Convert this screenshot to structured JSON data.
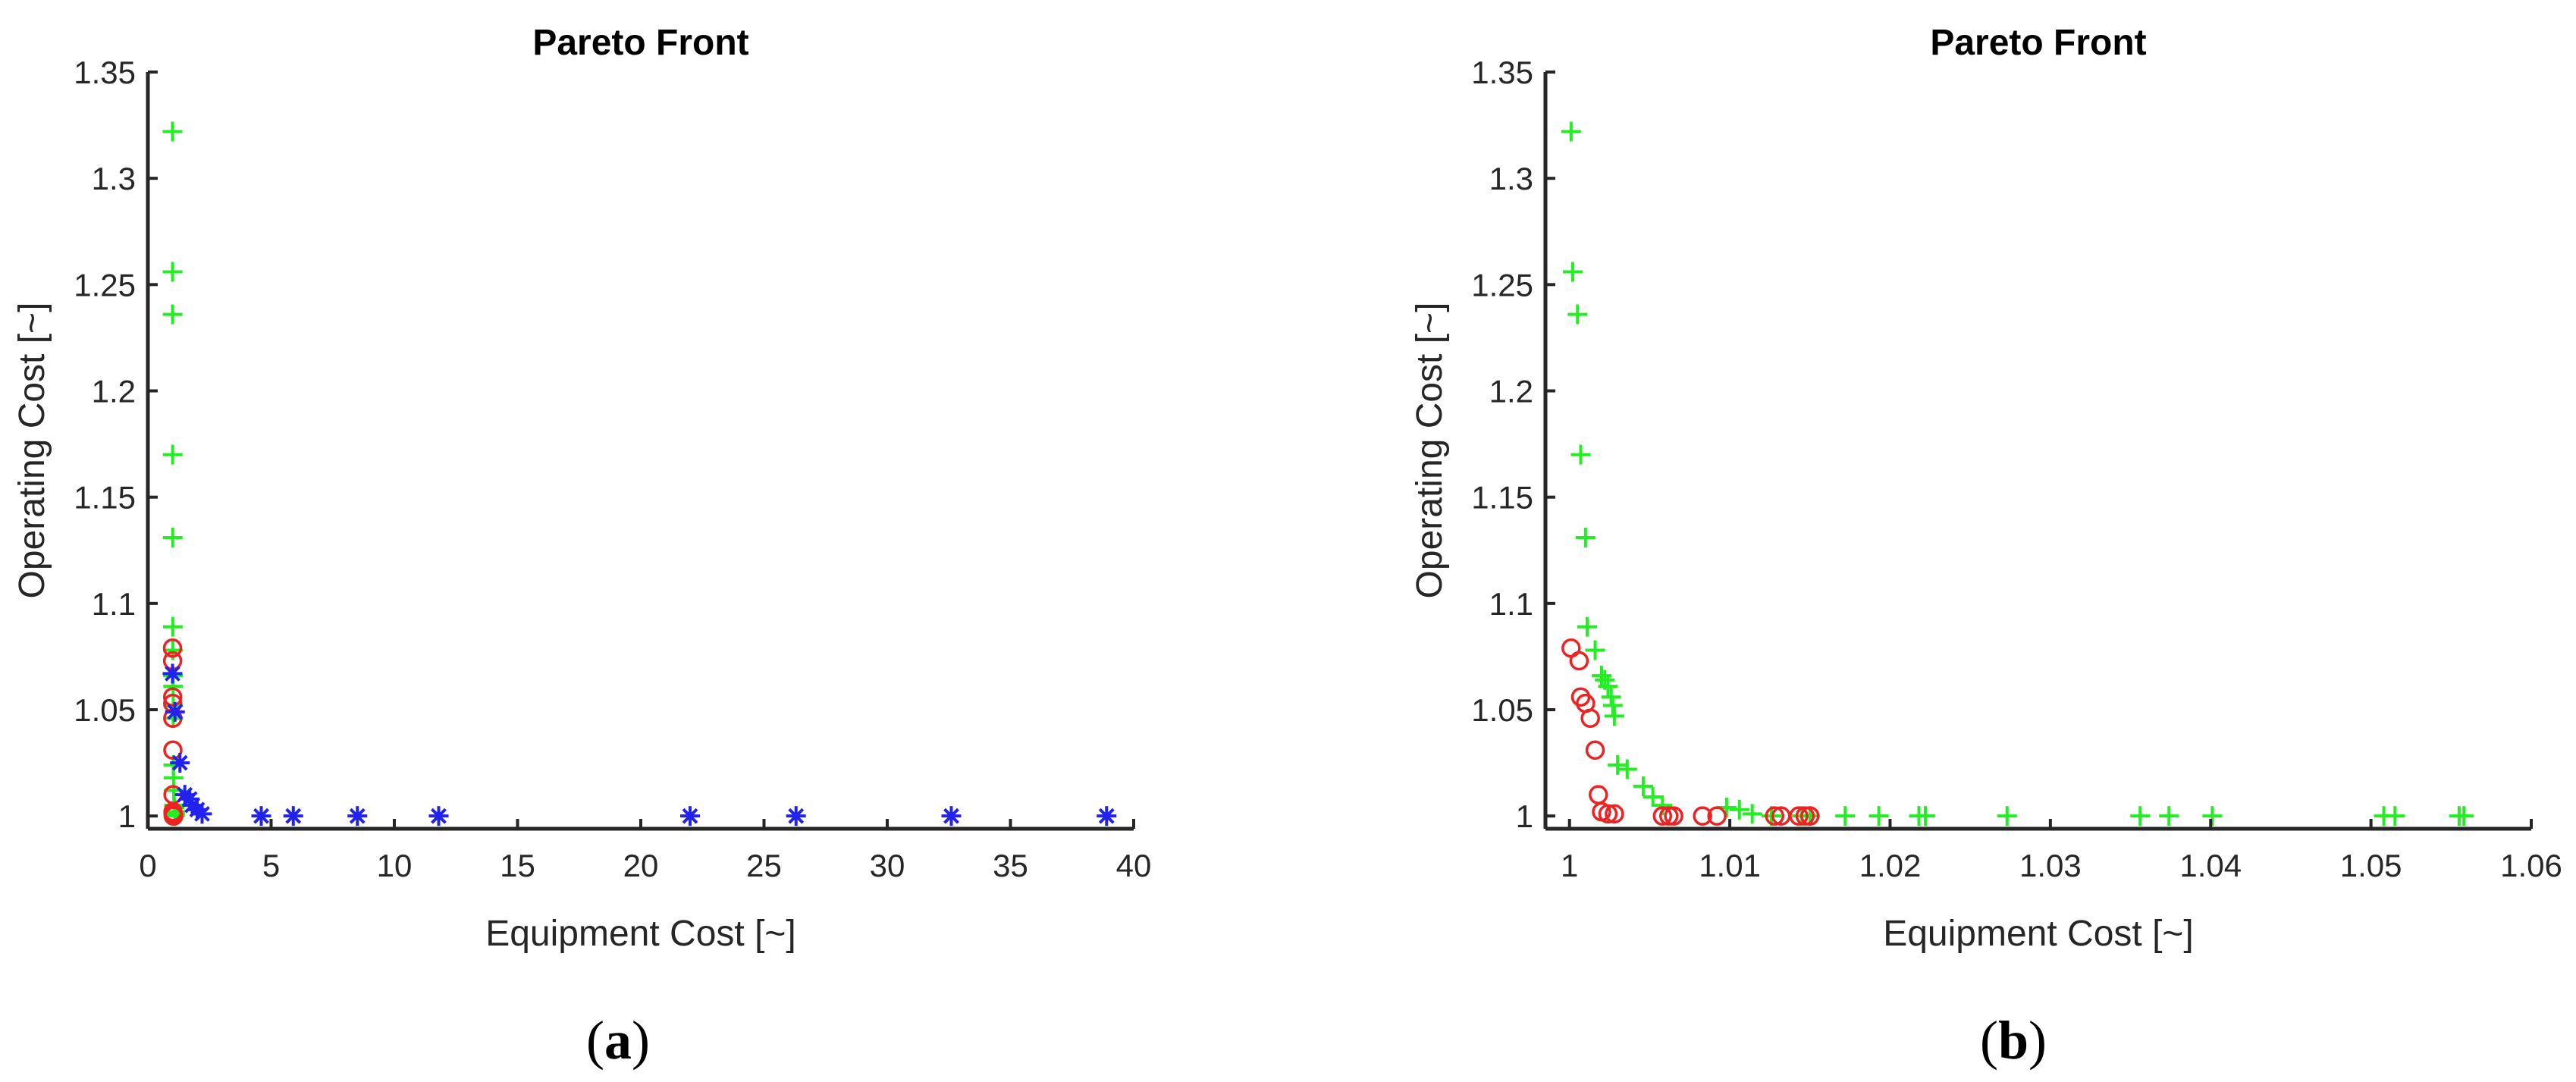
{
  "panels": [
    {
      "id": "a",
      "label_prefix": "(",
      "label_letter": "a",
      "label_suffix": ")"
    },
    {
      "id": "b",
      "label_prefix": "(",
      "label_letter": "b",
      "label_suffix": ")"
    }
  ],
  "chart_data": [
    {
      "type": "scatter",
      "title": "Pareto Front",
      "xlabel": "Equipment Cost [~]",
      "ylabel": "Operating Cost [~]",
      "xlim": [
        0,
        40
      ],
      "ylim": [
        0.994,
        1.35
      ],
      "xticks": [
        0,
        5,
        10,
        15,
        20,
        25,
        30,
        35,
        40
      ],
      "xtick_labels": [
        "0",
        "5",
        "10",
        "15",
        "20",
        "25",
        "30",
        "35",
        "40"
      ],
      "yticks": [
        1,
        1.05,
        1.1,
        1.15,
        1.2,
        1.25,
        1.3,
        1.35
      ],
      "ytick_labels": [
        "1",
        "1.05",
        "1.1",
        "1.15",
        "1.2",
        "1.25",
        "1.3",
        "1.35"
      ],
      "grid": false,
      "series": [
        {
          "marker": "plus",
          "color": "#22ee22",
          "points": [
            [
              1.0,
              1.322
            ],
            [
              1.002,
              1.256
            ],
            [
              1.003,
              1.236
            ],
            [
              1.006,
              1.17
            ],
            [
              1.009,
              1.131
            ],
            [
              1.012,
              1.089
            ],
            [
              1.015,
              1.078
            ],
            [
              1.02,
              1.066
            ],
            [
              1.025,
              1.061
            ],
            [
              1.028,
              1.052
            ],
            [
              1.03,
              1.046
            ],
            [
              1.032,
              1.024
            ],
            [
              1.04,
              1.018
            ],
            [
              1.05,
              1.012
            ],
            [
              1.06,
              1.005
            ],
            [
              1.08,
              1.004
            ],
            [
              1.1,
              1.002
            ],
            [
              1.1,
              1.001
            ],
            [
              1.1,
              1.0
            ]
          ]
        },
        {
          "marker": "circle",
          "color": "#ee2222",
          "points": [
            [
              1.0,
              1.079
            ],
            [
              1.005,
              1.073
            ],
            [
              1.007,
              1.056
            ],
            [
              1.01,
              1.053
            ],
            [
              1.012,
              1.046
            ],
            [
              1.015,
              1.031
            ],
            [
              1.02,
              1.01
            ],
            [
              1.02,
              1.002
            ],
            [
              1.025,
              1.001
            ],
            [
              1.03,
              1.0
            ],
            [
              1.05,
              1.0
            ]
          ]
        },
        {
          "marker": "asterisk",
          "color": "#2222ee",
          "points": [
            [
              1.0,
              1.067
            ],
            [
              1.1,
              1.049
            ],
            [
              1.3,
              1.025
            ],
            [
              1.5,
              1.01
            ],
            [
              1.7,
              1.008
            ],
            [
              1.8,
              1.005
            ],
            [
              2.0,
              1.003
            ],
            [
              2.2,
              1.001
            ],
            [
              4.6,
              1.0
            ],
            [
              5.9,
              1.0
            ],
            [
              8.5,
              1.0
            ],
            [
              11.8,
              1.0
            ],
            [
              22.0,
              1.0
            ],
            [
              26.3,
              1.0
            ],
            [
              32.6,
              1.0
            ],
            [
              38.9,
              1.0
            ]
          ]
        }
      ]
    },
    {
      "type": "scatter",
      "title": "Pareto Front",
      "xlabel": "Equipment Cost [~]",
      "ylabel": "Operating Cost [~]",
      "xlim": [
        0.9985,
        1.06
      ],
      "ylim": [
        0.994,
        1.35
      ],
      "xticks": [
        1,
        1.01,
        1.02,
        1.03,
        1.04,
        1.05,
        1.06
      ],
      "xtick_labels": [
        "1",
        "1.01",
        "1.02",
        "1.03",
        "1.04",
        "1.05",
        "1.06"
      ],
      "yticks": [
        1,
        1.05,
        1.1,
        1.15,
        1.2,
        1.25,
        1.3,
        1.35
      ],
      "ytick_labels": [
        "1",
        "1.05",
        "1.1",
        "1.15",
        "1.2",
        "1.25",
        "1.3",
        "1.35"
      ],
      "grid": false,
      "series": [
        {
          "marker": "plus",
          "color": "#22ee22",
          "points": [
            [
              1.0001,
              1.322
            ],
            [
              1.0002,
              1.256
            ],
            [
              1.0005,
              1.236
            ],
            [
              1.0007,
              1.17
            ],
            [
              1.001,
              1.131
            ],
            [
              1.0011,
              1.089
            ],
            [
              1.0016,
              1.078
            ],
            [
              1.002,
              1.066
            ],
            [
              1.0022,
              1.064
            ],
            [
              1.0024,
              1.061
            ],
            [
              1.0026,
              1.056
            ],
            [
              1.0027,
              1.052
            ],
            [
              1.0028,
              1.047
            ],
            [
              1.003,
              1.024
            ],
            [
              1.0036,
              1.022
            ],
            [
              1.0046,
              1.014
            ],
            [
              1.0052,
              1.009
            ],
            [
              1.0058,
              1.005
            ],
            [
              1.0098,
              1.004
            ],
            [
              1.0106,
              1.003
            ],
            [
              1.0114,
              1.001
            ],
            [
              1.0126,
              1.0
            ],
            [
              1.0145,
              1.0
            ],
            [
              1.015,
              1.0
            ],
            [
              1.0172,
              1.0
            ],
            [
              1.0193,
              1.0
            ],
            [
              1.0218,
              1.0
            ],
            [
              1.0222,
              1.0
            ],
            [
              1.0273,
              1.0
            ],
            [
              1.0356,
              1.0
            ],
            [
              1.0374,
              1.0
            ],
            [
              1.0401,
              1.0
            ],
            [
              1.0508,
              1.0
            ],
            [
              1.0515,
              1.0
            ],
            [
              1.0555,
              1.0
            ],
            [
              1.0558,
              1.0
            ]
          ]
        },
        {
          "marker": "circle",
          "color": "#ee2222",
          "points": [
            [
              1.0001,
              1.079
            ],
            [
              1.0006,
              1.073
            ],
            [
              1.0007,
              1.056
            ],
            [
              1.001,
              1.053
            ],
            [
              1.0013,
              1.046
            ],
            [
              1.0016,
              1.031
            ],
            [
              1.0018,
              1.01
            ],
            [
              1.002,
              1.002
            ],
            [
              1.0024,
              1.001
            ],
            [
              1.0028,
              1.001
            ],
            [
              1.0058,
              1.0
            ],
            [
              1.0062,
              1.0
            ],
            [
              1.0065,
              1.0
            ],
            [
              1.0083,
              1.0
            ],
            [
              1.0092,
              1.0
            ],
            [
              1.0128,
              1.0
            ],
            [
              1.0132,
              1.0
            ],
            [
              1.0143,
              1.0
            ],
            [
              1.0147,
              1.0
            ],
            [
              1.015,
              1.0
            ]
          ]
        }
      ]
    }
  ]
}
